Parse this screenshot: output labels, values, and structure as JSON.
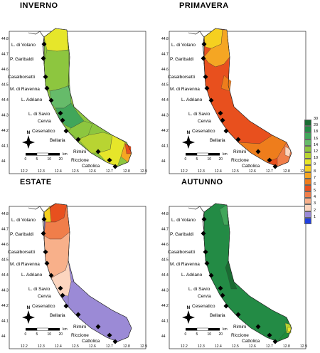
{
  "panels": [
    {
      "key": "inverno",
      "title": "INVERNO",
      "base_color": "#8dc63f"
    },
    {
      "key": "primavera",
      "title": "PRIMAVERA",
      "base_color": "#e8501e"
    },
    {
      "key": "estate",
      "title": "ESTATE",
      "base_color": "#9b8ad6"
    },
    {
      "key": "autunno",
      "title": "AUTUNNO",
      "base_color": "#1e8b3a"
    }
  ],
  "locations": [
    "L. di Volano",
    "P. Garibaldi",
    "Casalborsetti",
    "M. di Ravenna",
    "L. Adriano",
    "L. di Savio",
    "Cervia",
    "Cesenatico",
    "Bellaria",
    "Rimini",
    "Riccione",
    "Cattolica"
  ],
  "lat_ticks": [
    "44.8",
    "44.7",
    "44.6",
    "44.5",
    "44.4",
    "44.3",
    "44.2",
    "44.1",
    "44"
  ],
  "lon_ticks": [
    "12.2",
    "12.3",
    "12.4",
    "12.5",
    "12.6",
    "12.7",
    "12.8",
    "12.9"
  ],
  "scale_labels": [
    "0",
    "5",
    "10",
    "20"
  ],
  "scale_unit": "km",
  "north_label": "N",
  "legend": [
    {
      "label": "30",
      "color": "#1a6b32"
    },
    {
      "label": "20",
      "color": "#238b45"
    },
    {
      "label": "18",
      "color": "#41a65a"
    },
    {
      "label": "16",
      "color": "#66bb6a"
    },
    {
      "label": "14",
      "color": "#8dc63f"
    },
    {
      "label": "12",
      "color": "#b8d432"
    },
    {
      "label": "10",
      "color": "#e6e62a"
    },
    {
      "label": "9",
      "color": "#f5d020"
    },
    {
      "label": "8",
      "color": "#f5a623"
    },
    {
      "label": "7",
      "color": "#ee7d1c"
    },
    {
      "label": "6",
      "color": "#e8501e"
    },
    {
      "label": "5",
      "color": "#f07e4a"
    },
    {
      "label": "4",
      "color": "#f8b08a"
    },
    {
      "label": "3",
      "color": "#fcd5bf"
    },
    {
      "label": "2",
      "color": "#9b8ad6"
    },
    {
      "label": "1",
      "color": "#1f3fe0"
    }
  ]
}
